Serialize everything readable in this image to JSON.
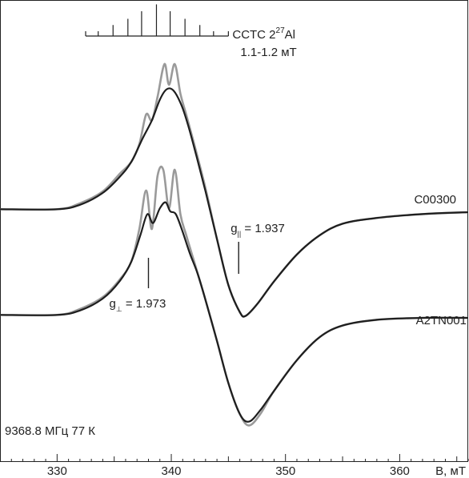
{
  "chart_data": {
    "type": "line",
    "xlabel": "B, мТ",
    "xlim": [
      325,
      366
    ],
    "xticks": [
      330,
      340,
      350,
      360
    ],
    "grid": false,
    "series": [
      {
        "name": "C00300",
        "label": "C00300",
        "traces": [
          {
            "role": "experimental",
            "color": "#9a9a9a",
            "points": [
              [
                325,
                0.02
              ],
              [
                330,
                0.02
              ],
              [
                332,
                0.06
              ],
              [
                334,
                0.14
              ],
              [
                335.5,
                0.26
              ],
              [
                336.5,
                0.34
              ],
              [
                337.2,
                0.46
              ],
              [
                337.8,
                0.66
              ],
              [
                338.3,
                0.62
              ],
              [
                338.8,
                0.78
              ],
              [
                339.4,
                1.0
              ],
              [
                339.8,
                0.86
              ],
              [
                340.3,
                1.0
              ],
              [
                340.8,
                0.8
              ],
              [
                341.3,
                0.66
              ],
              [
                342,
                0.46
              ],
              [
                343,
                0.16
              ],
              [
                344,
                -0.14
              ],
              [
                345,
                -0.38
              ],
              [
                346,
                -0.52
              ],
              [
                346.5,
                -0.54
              ],
              [
                347.5,
                -0.48
              ],
              [
                349,
                -0.36
              ],
              [
                351,
                -0.22
              ],
              [
                353,
                -0.12
              ],
              [
                355,
                -0.06
              ],
              [
                358,
                -0.03
              ],
              [
                362,
                -0.01
              ],
              [
                366,
                0.0
              ]
            ]
          },
          {
            "role": "simulated",
            "color": "#1e1e1e",
            "points": [
              [
                325,
                0.02
              ],
              [
                330,
                0.02
              ],
              [
                332,
                0.05
              ],
              [
                334,
                0.13
              ],
              [
                335.5,
                0.24
              ],
              [
                336.5,
                0.34
              ],
              [
                337.5,
                0.5
              ],
              [
                338.3,
                0.62
              ],
              [
                339,
                0.76
              ],
              [
                339.6,
                0.83
              ],
              [
                340.2,
                0.82
              ],
              [
                340.9,
                0.72
              ],
              [
                341.5,
                0.58
              ],
              [
                342.2,
                0.38
              ],
              [
                343,
                0.14
              ],
              [
                344,
                -0.14
              ],
              [
                345,
                -0.38
              ],
              [
                346,
                -0.52
              ],
              [
                346.5,
                -0.54
              ],
              [
                347.5,
                -0.48
              ],
              [
                349,
                -0.36
              ],
              [
                351,
                -0.22
              ],
              [
                353,
                -0.12
              ],
              [
                355,
                -0.06
              ],
              [
                358,
                -0.03
              ],
              [
                362,
                -0.01
              ],
              [
                366,
                0.0
              ]
            ]
          }
        ]
      },
      {
        "name": "A2TN001",
        "label": "A2TN001",
        "traces": [
          {
            "role": "experimental",
            "color": "#9a9a9a",
            "points": [
              [
                325,
                0.02
              ],
              [
                330,
                0.02
              ],
              [
                332,
                0.06
              ],
              [
                334,
                0.14
              ],
              [
                335.5,
                0.26
              ],
              [
                336.5,
                0.38
              ],
              [
                337.2,
                0.6
              ],
              [
                337.8,
                0.86
              ],
              [
                338.3,
                0.6
              ],
              [
                338.8,
                0.96
              ],
              [
                339.3,
                1.0
              ],
              [
                339.8,
                0.74
              ],
              [
                340.3,
                1.0
              ],
              [
                340.8,
                0.7
              ],
              [
                341.3,
                0.56
              ],
              [
                342,
                0.38
              ],
              [
                343,
                0.12
              ],
              [
                344,
                -0.12
              ],
              [
                345,
                -0.34
              ],
              [
                346,
                -0.5
              ],
              [
                346.8,
                -0.56
              ],
              [
                347.8,
                -0.5
              ],
              [
                349,
                -0.38
              ],
              [
                351,
                -0.22
              ],
              [
                353,
                -0.1
              ],
              [
                355,
                -0.04
              ],
              [
                358,
                -0.01
              ],
              [
                362,
                0.0
              ],
              [
                366,
                0.0
              ]
            ]
          },
          {
            "role": "simulated",
            "color": "#1e1e1e",
            "points": [
              [
                325,
                0.02
              ],
              [
                330,
                0.02
              ],
              [
                332,
                0.05
              ],
              [
                334,
                0.13
              ],
              [
                335.5,
                0.25
              ],
              [
                336.5,
                0.38
              ],
              [
                337.3,
                0.56
              ],
              [
                337.9,
                0.7
              ],
              [
                338.4,
                0.64
              ],
              [
                339,
                0.74
              ],
              [
                339.5,
                0.78
              ],
              [
                339.9,
                0.72
              ],
              [
                340.4,
                0.7
              ],
              [
                341,
                0.58
              ],
              [
                341.6,
                0.44
              ],
              [
                342.3,
                0.3
              ],
              [
                343,
                0.12
              ],
              [
                344,
                -0.12
              ],
              [
                345,
                -0.34
              ],
              [
                346,
                -0.5
              ],
              [
                346.8,
                -0.54
              ],
              [
                347.8,
                -0.48
              ],
              [
                349,
                -0.38
              ],
              [
                351,
                -0.22
              ],
              [
                353,
                -0.1
              ],
              [
                355,
                -0.04
              ],
              [
                358,
                -0.01
              ],
              [
                362,
                0.0
              ],
              [
                366,
                0.0
              ]
            ]
          }
        ]
      }
    ],
    "stick_diagram": {
      "label_line1": "СCTC 2",
      "label_sup": "27",
      "label_end": "Al",
      "label_line2": "1.1-1.2 мТ",
      "positions": [
        333.6,
        334.9,
        336.2,
        337.4,
        338.7,
        339.9,
        341.2,
        342.5,
        343.7
      ],
      "heights": [
        0.14,
        0.32,
        0.5,
        0.72,
        0.92,
        0.72,
        0.5,
        0.32,
        0.14
      ],
      "baseline_x": [
        332.5,
        345
      ]
    },
    "annotations": [
      {
        "text_main": "g",
        "text_sub": "||",
        "text_rest": " = 1.937",
        "marker_x": 345.9,
        "trace": "C00300"
      },
      {
        "text_main": "g",
        "text_sub": "⊥",
        "text_rest": " = 1.973",
        "marker_x": 338.0,
        "trace": "A2TN001"
      }
    ],
    "conditions": "9368.8 МГц 77 К"
  }
}
